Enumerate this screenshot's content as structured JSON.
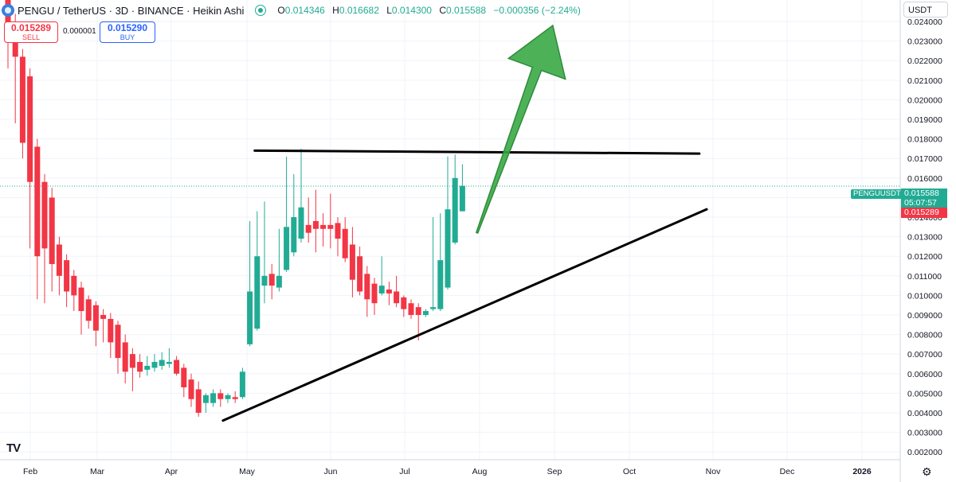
{
  "header": {
    "title": "PENGU / TetherUS · 3D · BINANCE · Heikin Ashi",
    "ohlc": {
      "o_label": "O",
      "o": "0.014346",
      "h_label": "H",
      "h": "0.016682",
      "l_label": "L",
      "l": "0.014300",
      "c_label": "C",
      "c": "0.015588",
      "change": "−0.000356 (−2.24%)"
    }
  },
  "trade": {
    "sell_price": "0.015289",
    "sell_label": "SELL",
    "spread": "0.000001",
    "buy_price": "0.015290",
    "buy_label": "BUY"
  },
  "currency_button": "USDT",
  "price_labels": {
    "symbol": "PENGUUSDT",
    "last": "0.015588",
    "countdown": "05:07:57",
    "bid": "0.015289"
  },
  "colors": {
    "up": "#22ab94",
    "down": "#f23645",
    "arrow": "#3aaa45",
    "lines": "#000000"
  },
  "chart_data": {
    "type": "candlestick",
    "style": "Heikin Ashi",
    "y_axis_ticks": [
      "0.002000",
      "0.003000",
      "0.004000",
      "0.005000",
      "0.006000",
      "0.007000",
      "0.008000",
      "0.009000",
      "0.010000",
      "0.011000",
      "0.012000",
      "0.013000",
      "0.014000",
      "0.015000",
      "0.016000",
      "0.017000",
      "0.018000",
      "0.019000",
      "0.020000",
      "0.021000",
      "0.022000",
      "0.023000",
      "0.024000"
    ],
    "ylim": [
      0.0016,
      0.0251
    ],
    "x_axis_ticks": [
      "Feb",
      "Mar",
      "Apr",
      "May",
      "Jun",
      "Jul",
      "Aug",
      "Sep",
      "Oct",
      "Nov",
      "Dec",
      "2026"
    ],
    "grid": true,
    "candles": [
      {
        "o": 0.0252,
        "h": 0.0258,
        "l": 0.0216,
        "c": 0.0234
      },
      {
        "o": 0.0236,
        "h": 0.0244,
        "l": 0.0188,
        "c": 0.0222
      },
      {
        "o": 0.0222,
        "h": 0.0226,
        "l": 0.017,
        "c": 0.0178
      },
      {
        "o": 0.0212,
        "h": 0.0216,
        "l": 0.0124,
        "c": 0.0158
      },
      {
        "o": 0.0176,
        "h": 0.018,
        "l": 0.0098,
        "c": 0.012
      },
      {
        "o": 0.0158,
        "h": 0.0162,
        "l": 0.0096,
        "c": 0.0124
      },
      {
        "o": 0.015,
        "h": 0.0155,
        "l": 0.0102,
        "c": 0.0116
      },
      {
        "o": 0.0126,
        "h": 0.013,
        "l": 0.01,
        "c": 0.011
      },
      {
        "o": 0.0118,
        "h": 0.0121,
        "l": 0.0094,
        "c": 0.0102
      },
      {
        "o": 0.011,
        "h": 0.0113,
        "l": 0.0092,
        "c": 0.01
      },
      {
        "o": 0.0104,
        "h": 0.0107,
        "l": 0.008,
        "c": 0.0092
      },
      {
        "o": 0.0098,
        "h": 0.01,
        "l": 0.0083,
        "c": 0.0087
      },
      {
        "o": 0.0095,
        "h": 0.0097,
        "l": 0.0074,
        "c": 0.0082
      },
      {
        "o": 0.009,
        "h": 0.0093,
        "l": 0.0076,
        "c": 0.0088
      },
      {
        "o": 0.0088,
        "h": 0.0091,
        "l": 0.0068,
        "c": 0.0076
      },
      {
        "o": 0.0085,
        "h": 0.0087,
        "l": 0.006,
        "c": 0.0068
      },
      {
        "o": 0.0076,
        "h": 0.008,
        "l": 0.0055,
        "c": 0.0061
      },
      {
        "o": 0.007,
        "h": 0.0073,
        "l": 0.0051,
        "c": 0.0063
      },
      {
        "o": 0.0066,
        "h": 0.007,
        "l": 0.0058,
        "c": 0.0061
      },
      {
        "o": 0.0062,
        "h": 0.0069,
        "l": 0.0059,
        "c": 0.0064
      },
      {
        "o": 0.0063,
        "h": 0.007,
        "l": 0.0061,
        "c": 0.0066
      },
      {
        "o": 0.0064,
        "h": 0.0071,
        "l": 0.0062,
        "c": 0.0067
      },
      {
        "o": 0.0065,
        "h": 0.0073,
        "l": 0.0063,
        "c": 0.0066
      },
      {
        "o": 0.0067,
        "h": 0.0069,
        "l": 0.0059,
        "c": 0.006
      },
      {
        "o": 0.0063,
        "h": 0.0065,
        "l": 0.0048,
        "c": 0.0053
      },
      {
        "o": 0.0057,
        "h": 0.006,
        "l": 0.0043,
        "c": 0.0047
      },
      {
        "o": 0.0052,
        "h": 0.0056,
        "l": 0.0038,
        "c": 0.004
      },
      {
        "o": 0.0045,
        "h": 0.005,
        "l": 0.004,
        "c": 0.0049
      },
      {
        "o": 0.0045,
        "h": 0.0052,
        "l": 0.0043,
        "c": 0.005
      },
      {
        "o": 0.005,
        "h": 0.0052,
        "l": 0.0043,
        "c": 0.0047
      },
      {
        "o": 0.0047,
        "h": 0.005,
        "l": 0.0045,
        "c": 0.0049
      },
      {
        "o": 0.0048,
        "h": 0.0051,
        "l": 0.0045,
        "c": 0.0047
      },
      {
        "o": 0.0048,
        "h": 0.0063,
        "l": 0.0047,
        "c": 0.0061
      },
      {
        "o": 0.0075,
        "h": 0.0138,
        "l": 0.0074,
        "c": 0.0102
      },
      {
        "o": 0.0083,
        "h": 0.0143,
        "l": 0.0082,
        "c": 0.012
      },
      {
        "o": 0.0105,
        "h": 0.0148,
        "l": 0.0096,
        "c": 0.011
      },
      {
        "o": 0.0111,
        "h": 0.0116,
        "l": 0.0098,
        "c": 0.0105
      },
      {
        "o": 0.0104,
        "h": 0.0134,
        "l": 0.0102,
        "c": 0.011
      },
      {
        "o": 0.0113,
        "h": 0.0171,
        "l": 0.0112,
        "c": 0.0135
      },
      {
        "o": 0.0122,
        "h": 0.0162,
        "l": 0.012,
        "c": 0.014
      },
      {
        "o": 0.0129,
        "h": 0.0175,
        "l": 0.0127,
        "c": 0.0145
      },
      {
        "o": 0.0136,
        "h": 0.015,
        "l": 0.0127,
        "c": 0.0132
      },
      {
        "o": 0.0138,
        "h": 0.0154,
        "l": 0.0122,
        "c": 0.0134
      },
      {
        "o": 0.0136,
        "h": 0.0142,
        "l": 0.0125,
        "c": 0.0134
      },
      {
        "o": 0.0136,
        "h": 0.0152,
        "l": 0.0124,
        "c": 0.0134
      },
      {
        "o": 0.0137,
        "h": 0.014,
        "l": 0.012,
        "c": 0.0129
      },
      {
        "o": 0.0134,
        "h": 0.014,
        "l": 0.0117,
        "c": 0.0119
      },
      {
        "o": 0.0126,
        "h": 0.0135,
        "l": 0.0099,
        "c": 0.0108
      },
      {
        "o": 0.012,
        "h": 0.0125,
        "l": 0.01,
        "c": 0.0102
      },
      {
        "o": 0.0111,
        "h": 0.0115,
        "l": 0.0089,
        "c": 0.0098
      },
      {
        "o": 0.0106,
        "h": 0.0109,
        "l": 0.009,
        "c": 0.0096
      },
      {
        "o": 0.0101,
        "h": 0.012,
        "l": 0.01,
        "c": 0.0105
      },
      {
        "o": 0.0103,
        "h": 0.0107,
        "l": 0.0095,
        "c": 0.0101
      },
      {
        "o": 0.0102,
        "h": 0.011,
        "l": 0.0094,
        "c": 0.0096
      },
      {
        "o": 0.0099,
        "h": 0.01,
        "l": 0.0089,
        "c": 0.0093
      },
      {
        "o": 0.0096,
        "h": 0.0098,
        "l": 0.0088,
        "c": 0.009
      },
      {
        "o": 0.0094,
        "h": 0.0096,
        "l": 0.0077,
        "c": 0.009
      },
      {
        "o": 0.009,
        "h": 0.0093,
        "l": 0.0089,
        "c": 0.0092
      },
      {
        "o": 0.0093,
        "h": 0.014,
        "l": 0.0092,
        "c": 0.0094
      },
      {
        "o": 0.0093,
        "h": 0.0142,
        "l": 0.0092,
        "c": 0.0118
      },
      {
        "o": 0.0104,
        "h": 0.0171,
        "l": 0.0103,
        "c": 0.0144
      },
      {
        "o": 0.0127,
        "h": 0.0172,
        "l": 0.0126,
        "c": 0.016
      },
      {
        "o": 0.0143,
        "h": 0.0167,
        "l": 0.0143,
        "c": 0.0156
      }
    ],
    "annotations": [
      {
        "type": "horizontal-resistance-line",
        "from": {
          "x": "2025-04-19",
          "y": 0.0174
        },
        "to": {
          "x": "2025-10-18",
          "y": 0.01725
        }
      },
      {
        "type": "rising-support-line",
        "from": {
          "x": "2025-04-06",
          "y": 0.0036
        },
        "to": {
          "x": "2025-10-21",
          "y": 0.0144
        }
      },
      {
        "type": "up-arrow",
        "from": {
          "x": "2025-07-19",
          "y": 0.0132
        },
        "to": {
          "x": "2025-08-19",
          "y": 0.0238
        }
      }
    ]
  }
}
